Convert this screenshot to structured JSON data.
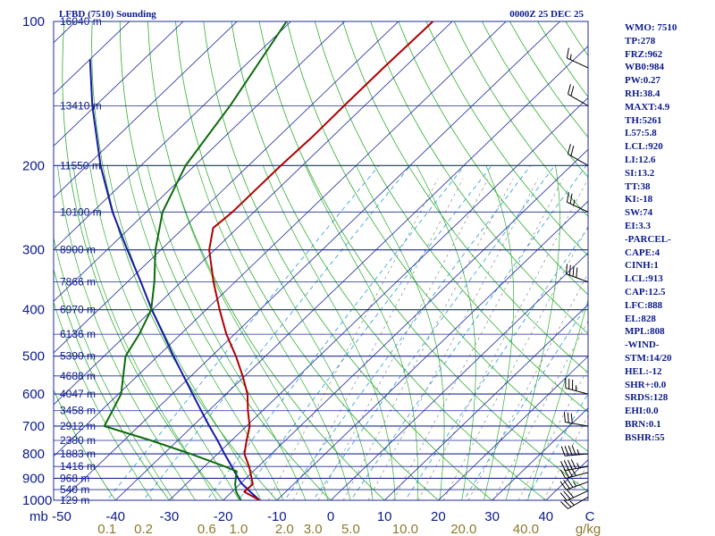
{
  "header": {
    "station_title": "LFBD (7510) Sounding",
    "valid_time": "0000Z 25 DEC 25"
  },
  "indices": [
    "WMO: 7510",
    "TP:278",
    "FRZ:962",
    "WB0:984",
    "PW:0.27",
    "RH:38.4",
    "MAXT:4.9",
    "TH:5261",
    "L57:5.8",
    "LCL:920",
    "LI:12.6",
    "SI:13.2",
    "TT:38",
    "KI:-18",
    "SW:74",
    "EI:3.3",
    "-PARCEL-",
    "CAPE:4",
    "CINH:1",
    "LCL:913",
    "CAP:12.5",
    "LFC:888",
    "EL:828",
    "MPL:808",
    "-WIND-",
    "STM:14/20",
    "HEL:-12",
    "SHR+:0.0",
    "SRDS:128",
    "EHI:0.0",
    "BRN:0.1",
    "BSHR:55"
  ],
  "colors": {
    "isobar": "#1c2a9e",
    "isotherm": "#1c2a9e",
    "dry_adiabat": "#2fae2f",
    "moist_adiabat": "#2fae2f",
    "mixing_ratio": "#2a9ad0",
    "theta_e_guide": "#777777",
    "temperature": "#b00000",
    "dewpoint": "#0d6b0d",
    "parcel": "#1a1aa8",
    "wind_barb": "#000000"
  },
  "chart_data": {
    "type": "skew-t log-p",
    "pressure_levels": [
      100,
      200,
      300,
      400,
      500,
      600,
      700,
      800,
      900,
      1000
    ],
    "pressure_unit_label": "mb",
    "height_labels": [
      {
        "p": 100,
        "text": "16040 m"
      },
      {
        "p": 150,
        "text": "13410 m"
      },
      {
        "p": 200,
        "text": "11550 m"
      },
      {
        "p": 250,
        "text": "10100 m"
      },
      {
        "p": 300,
        "text": "8900 m"
      },
      {
        "p": 350,
        "text": "7866 m"
      },
      {
        "p": 400,
        "text": "6970 m"
      },
      {
        "p": 450,
        "text": "6136 m"
      },
      {
        "p": 500,
        "text": "5390 m"
      },
      {
        "p": 550,
        "text": "4688 m"
      },
      {
        "p": 600,
        "text": "4047 m"
      },
      {
        "p": 650,
        "text": "3458 m"
      },
      {
        "p": 700,
        "text": "2912 m"
      },
      {
        "p": 750,
        "text": "2380 m"
      },
      {
        "p": 800,
        "text": "1883 m"
      },
      {
        "p": 850,
        "text": "1416 m"
      },
      {
        "p": 900,
        "text": "968 m"
      },
      {
        "p": 950,
        "text": "540 m"
      },
      {
        "p": 1000,
        "text": "129 m"
      }
    ],
    "temperature_ticks": [
      "-50",
      "-40",
      "-30",
      "-20",
      "-10",
      "0",
      "10",
      "20",
      "30",
      "40",
      "C"
    ],
    "temperature_tick_values": [
      -50,
      -40,
      -30,
      -20,
      -10,
      0,
      10,
      20,
      30,
      40
    ],
    "mixing_ratio_ticks": [
      "0.1",
      "0.2",
      "0.6",
      "1.0",
      "2.0",
      "3.0",
      "5.0",
      "10.0",
      "20.0",
      "40.0",
      "g/kg"
    ],
    "mixing_ratio_tick_values": [
      0.1,
      0.2,
      0.6,
      1.0,
      2.0,
      3.0,
      5.0,
      10.0,
      20.0,
      40.0
    ],
    "temperature_profile": [
      {
        "p": 1000,
        "t": -13.2
      },
      {
        "p": 960,
        "t": -17.7
      },
      {
        "p": 925,
        "t": -17.6
      },
      {
        "p": 850,
        "t": -21.7
      },
      {
        "p": 800,
        "t": -25.0
      },
      {
        "p": 750,
        "t": -27.2
      },
      {
        "p": 700,
        "t": -29.4
      },
      {
        "p": 650,
        "t": -32.7
      },
      {
        "p": 600,
        "t": -36.0
      },
      {
        "p": 550,
        "t": -40.4
      },
      {
        "p": 500,
        "t": -45.5
      },
      {
        "p": 450,
        "t": -51.5
      },
      {
        "p": 400,
        "t": -57.5
      },
      {
        "p": 350,
        "t": -64.0
      },
      {
        "p": 300,
        "t": -71.0
      },
      {
        "p": 270,
        "t": -74.5
      },
      {
        "p": 250,
        "t": -74.0
      },
      {
        "p": 225,
        "t": -74.0
      },
      {
        "p": 200,
        "t": -74.0
      },
      {
        "p": 175,
        "t": -73.7
      },
      {
        "p": 150,
        "t": -73.8
      },
      {
        "p": 125,
        "t": -73.8
      },
      {
        "p": 100,
        "t": -73.6
      }
    ],
    "dewpoint_profile": [
      {
        "p": 1000,
        "td": -16.7
      },
      {
        "p": 960,
        "td": -19.2
      },
      {
        "p": 925,
        "td": -20.9
      },
      {
        "p": 870,
        "td": -23.1
      },
      {
        "p": 850,
        "td": -26.2
      },
      {
        "p": 800,
        "td": -35.0
      },
      {
        "p": 750,
        "td": -45.0
      },
      {
        "p": 700,
        "td": -56.4
      },
      {
        "p": 600,
        "td": -59.5
      },
      {
        "p": 500,
        "td": -66.0
      },
      {
        "p": 450,
        "td": -67.7
      },
      {
        "p": 400,
        "td": -70.2
      },
      {
        "p": 350,
        "td": -75.0
      },
      {
        "p": 300,
        "td": -81.0
      },
      {
        "p": 250,
        "td": -87.0
      },
      {
        "p": 200,
        "td": -91.7
      },
      {
        "p": 150,
        "td": -95.0
      },
      {
        "p": 100,
        "td": -100.8
      }
    ],
    "parcel_profile": [
      {
        "p": 1000,
        "t": -13.2
      },
      {
        "p": 960,
        "t": -16.6
      },
      {
        "p": 920,
        "t": -20.0
      },
      {
        "p": 870,
        "t": -23.5
      },
      {
        "p": 850,
        "t": -24.9
      },
      {
        "p": 800,
        "t": -28.7
      },
      {
        "p": 750,
        "t": -32.6
      },
      {
        "p": 700,
        "t": -36.9
      },
      {
        "p": 650,
        "t": -41.4
      },
      {
        "p": 600,
        "t": -46.2
      },
      {
        "p": 550,
        "t": -51.4
      },
      {
        "p": 500,
        "t": -57.1
      },
      {
        "p": 450,
        "t": -63.2
      },
      {
        "p": 400,
        "t": -70.1
      },
      {
        "p": 350,
        "t": -77.5
      },
      {
        "p": 300,
        "t": -86.2
      },
      {
        "p": 250,
        "t": -96.3
      },
      {
        "p": 200,
        "t": -107.5
      },
      {
        "p": 150,
        "t": -120.6
      },
      {
        "p": 120,
        "t": -130.0
      }
    ],
    "wind_profile": [
      {
        "p": 985,
        "dir": 240,
        "kt": 25
      },
      {
        "p": 955,
        "dir": 245,
        "kt": 30
      },
      {
        "p": 915,
        "dir": 250,
        "kt": 35
      },
      {
        "p": 875,
        "dir": 255,
        "kt": 40
      },
      {
        "p": 850,
        "dir": 260,
        "kt": 45
      },
      {
        "p": 800,
        "dir": 265,
        "kt": 45
      },
      {
        "p": 700,
        "dir": 280,
        "kt": 30
      },
      {
        "p": 600,
        "dir": 285,
        "kt": 35
      },
      {
        "p": 350,
        "dir": 290,
        "kt": 40
      },
      {
        "p": 250,
        "dir": 295,
        "kt": 25
      },
      {
        "p": 200,
        "dir": 300,
        "kt": 20
      },
      {
        "p": 150,
        "dir": 300,
        "kt": 20
      },
      {
        "p": 125,
        "dir": 295,
        "kt": 15
      }
    ]
  }
}
